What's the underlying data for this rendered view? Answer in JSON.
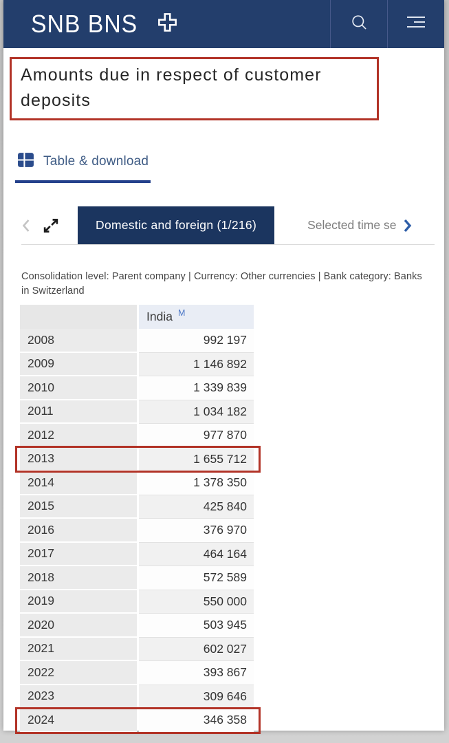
{
  "header": {
    "logo_text": "SNB BNS",
    "icons": {
      "cross": "swiss-cross-icon",
      "search": "search-icon",
      "menu": "menu-icon"
    }
  },
  "title": "Amounts due in respect of customer deposits",
  "tabs": {
    "table_download_label": "Table & download"
  },
  "series_nav": {
    "active_label": "Domestic and foreign (1/216)",
    "next_label": "Selected time se"
  },
  "filters_text": "Consolidation level: Parent company | Currency: Other currencies | Bank category: Banks in Switzerland",
  "table": {
    "column_header": "India",
    "column_superscript": "M",
    "rows": [
      {
        "year": "2008",
        "value": "992 197"
      },
      {
        "year": "2009",
        "value": "1 146 892"
      },
      {
        "year": "2010",
        "value": "1 339 839"
      },
      {
        "year": "2011",
        "value": "1 034 182"
      },
      {
        "year": "2012",
        "value": "977 870"
      },
      {
        "year": "2013",
        "value": "1 655 712",
        "highlight": true
      },
      {
        "year": "2014",
        "value": "1 378 350"
      },
      {
        "year": "2015",
        "value": "425 840"
      },
      {
        "year": "2016",
        "value": "376 970"
      },
      {
        "year": "2017",
        "value": "464 164"
      },
      {
        "year": "2018",
        "value": "572 589"
      },
      {
        "year": "2019",
        "value": "550 000"
      },
      {
        "year": "2020",
        "value": "503 945"
      },
      {
        "year": "2021",
        "value": "602 027"
      },
      {
        "year": "2022",
        "value": "393 867"
      },
      {
        "year": "2023",
        "value": "309 646"
      },
      {
        "year": "2024",
        "value": "346 358",
        "highlight": true
      }
    ]
  },
  "colors": {
    "header_bg": "#233e6c",
    "active_series_bg": "#1b355f",
    "annotation_red": "#b23327",
    "tab_underline": "#24418c",
    "footnote_blue": "#4f79c7"
  }
}
